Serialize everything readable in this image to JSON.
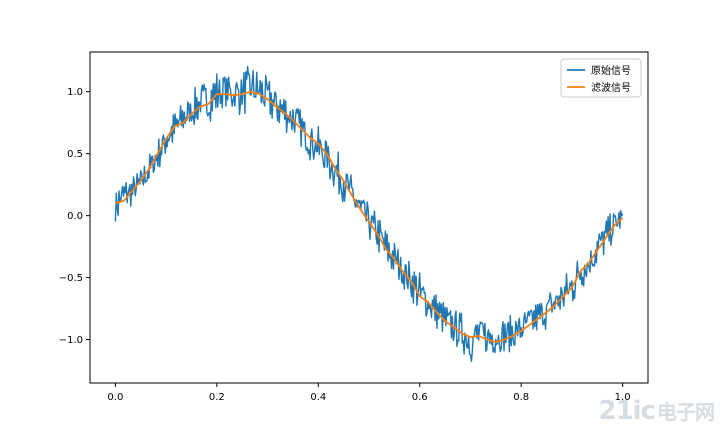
{
  "chart_data": {
    "type": "line",
    "title": "",
    "xlabel": "",
    "ylabel": "",
    "xlim": [
      -0.05,
      1.05
    ],
    "ylim": [
      -1.35,
      1.32
    ],
    "x_ticks": [
      0.0,
      0.2,
      0.4,
      0.6,
      0.8,
      1.0
    ],
    "x_tick_labels": [
      "0.0",
      "0.2",
      "0.4",
      "0.6",
      "0.8",
      "1.0"
    ],
    "y_ticks": [
      1.0,
      0.5,
      0.0,
      -0.5,
      -1.0
    ],
    "y_tick_labels": [
      "1.0",
      "0.5",
      "0.0",
      "−0.5",
      "−1.0"
    ],
    "grid": false,
    "legend_position": "top-right",
    "series": [
      {
        "name": "原始信号",
        "color": "#1f77b4",
        "x": [
          0.0,
          0.0167,
          0.0333,
          0.05,
          0.0667,
          0.0833,
          0.1,
          0.1167,
          0.1333,
          0.15,
          0.1667,
          0.1833,
          0.2,
          0.2167,
          0.2333,
          0.25,
          0.2667,
          0.2833,
          0.3,
          0.3167,
          0.3333,
          0.35,
          0.3667,
          0.3833,
          0.4,
          0.4167,
          0.4333,
          0.45,
          0.4667,
          0.4833,
          0.5,
          0.5167,
          0.5333,
          0.55,
          0.5667,
          0.5833,
          0.6,
          0.6167,
          0.6333,
          0.65,
          0.6667,
          0.6833,
          0.7,
          0.7167,
          0.7333,
          0.75,
          0.7667,
          0.7833,
          0.8,
          0.8167,
          0.8333,
          0.85,
          0.8667,
          0.8833,
          0.9,
          0.9167,
          0.9333,
          0.95,
          0.9667,
          0.9833,
          1.0
        ],
        "y_min": [
          -0.1,
          0.04,
          0.07,
          0.15,
          0.24,
          0.35,
          0.48,
          0.55,
          0.65,
          0.7,
          0.75,
          0.75,
          0.8,
          0.82,
          0.82,
          0.8,
          0.84,
          0.82,
          0.78,
          0.72,
          0.68,
          0.62,
          0.55,
          0.45,
          0.38,
          0.3,
          0.2,
          0.1,
          0.0,
          -0.1,
          -0.2,
          -0.3,
          -0.42,
          -0.5,
          -0.58,
          -0.68,
          -0.8,
          -0.85,
          -0.92,
          -0.98,
          -1.05,
          -1.1,
          -1.2,
          -1.1,
          -1.15,
          -1.12,
          -1.1,
          -1.1,
          -1.05,
          -1.0,
          -0.95,
          -0.92,
          -0.85,
          -0.8,
          -0.75,
          -0.6,
          -0.55,
          -0.42,
          -0.32,
          -0.2,
          -0.1
        ],
        "y_max": [
          0.25,
          0.3,
          0.32,
          0.38,
          0.5,
          0.62,
          0.75,
          0.85,
          0.92,
          1.0,
          1.08,
          1.1,
          1.18,
          1.2,
          1.15,
          1.18,
          1.22,
          1.18,
          1.12,
          1.05,
          1.0,
          0.95,
          0.85,
          0.78,
          0.72,
          0.65,
          0.55,
          0.45,
          0.32,
          0.2,
          0.1,
          0.02,
          -0.1,
          -0.2,
          -0.3,
          -0.38,
          -0.45,
          -0.55,
          -0.62,
          -0.7,
          -0.75,
          -0.78,
          -0.82,
          -0.8,
          -0.82,
          -0.85,
          -0.82,
          -0.8,
          -0.78,
          -0.72,
          -0.68,
          -0.62,
          -0.55,
          -0.48,
          -0.4,
          -0.3,
          -0.22,
          -0.1,
          -0.02,
          0.05,
          0.08
        ]
      },
      {
        "name": "滤波信号",
        "color": "#ff7f0e",
        "x": [
          0.0,
          0.0167,
          0.0333,
          0.05,
          0.0667,
          0.0833,
          0.1,
          0.1167,
          0.1333,
          0.15,
          0.1667,
          0.1833,
          0.2,
          0.2167,
          0.2333,
          0.25,
          0.2667,
          0.2833,
          0.3,
          0.3167,
          0.3333,
          0.35,
          0.3667,
          0.3833,
          0.4,
          0.4167,
          0.4333,
          0.45,
          0.4667,
          0.4833,
          0.5,
          0.5167,
          0.5333,
          0.55,
          0.5667,
          0.5833,
          0.6,
          0.6167,
          0.6333,
          0.65,
          0.6667,
          0.6833,
          0.7,
          0.7167,
          0.7333,
          0.75,
          0.7667,
          0.7833,
          0.8,
          0.8167,
          0.8333,
          0.85,
          0.8667,
          0.8833,
          0.9,
          0.9167,
          0.9333,
          0.95,
          0.9667,
          0.9833,
          1.0
        ],
        "y": [
          0.1,
          0.12,
          0.2,
          0.28,
          0.38,
          0.5,
          0.62,
          0.72,
          0.75,
          0.82,
          0.88,
          0.9,
          0.98,
          0.98,
          0.97,
          0.98,
          1.0,
          0.98,
          0.94,
          0.88,
          0.83,
          0.77,
          0.7,
          0.63,
          0.58,
          0.5,
          0.38,
          0.28,
          0.16,
          0.05,
          -0.05,
          -0.15,
          -0.27,
          -0.35,
          -0.45,
          -0.53,
          -0.65,
          -0.7,
          -0.78,
          -0.85,
          -0.9,
          -0.95,
          -0.98,
          -0.97,
          -1.0,
          -1.02,
          -1.0,
          -0.97,
          -0.93,
          -0.88,
          -0.83,
          -0.78,
          -0.72,
          -0.65,
          -0.58,
          -0.45,
          -0.38,
          -0.28,
          -0.18,
          -0.08,
          -0.02
        ]
      }
    ]
  },
  "watermark": {
    "main": "21ic",
    "sub": "电子网"
  }
}
